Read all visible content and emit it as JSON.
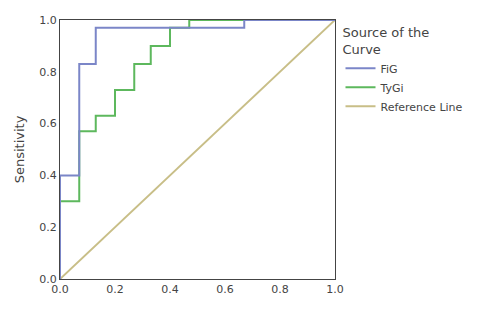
{
  "chart_data": {
    "type": "line",
    "ylabel": "Sensitivity",
    "legend_title": "Source of the\nCurve",
    "legend": "right",
    "grid": false,
    "series": [
      {
        "name": "FiG",
        "color": "#7b86c8",
        "x": [
          0.0,
          0.0,
          0.07,
          0.07,
          0.13,
          0.13,
          0.6,
          0.6,
          0.67,
          0.67,
          1.0
        ],
        "values": [
          0.0,
          0.4,
          0.4,
          0.83,
          0.83,
          0.97,
          0.97,
          0.97,
          0.97,
          1.0,
          1.0
        ]
      },
      {
        "name": "TyGi",
        "color": "#5db85d",
        "x": [
          0.0,
          0.0,
          0.07,
          0.07,
          0.13,
          0.13,
          0.2,
          0.2,
          0.27,
          0.27,
          0.33,
          0.33,
          0.4,
          0.4,
          0.47,
          0.47,
          1.0
        ],
        "values": [
          0.0,
          0.3,
          0.3,
          0.57,
          0.57,
          0.63,
          0.63,
          0.73,
          0.73,
          0.83,
          0.83,
          0.9,
          0.9,
          0.97,
          0.97,
          1.0,
          1.0
        ]
      },
      {
        "name": "Reference Line",
        "color": "#c8be87",
        "x": [
          0.0,
          1.0
        ],
        "values": [
          0.0,
          1.0
        ]
      }
    ],
    "xlim": [
      0.0,
      1.0
    ],
    "ylim": [
      0.0,
      1.0
    ],
    "xticks": [
      {
        "value": 0.0,
        "label": "0.0"
      },
      0.2,
      0.4,
      0.6,
      0.8,
      {
        "value": 1.0,
        "label": "1.0"
      }
    ],
    "yticks": [
      {
        "value": 0.0,
        "label": "0.0"
      },
      0.2,
      0.4,
      0.6,
      0.8,
      {
        "value": 1.0,
        "label": "1.0"
      }
    ]
  }
}
